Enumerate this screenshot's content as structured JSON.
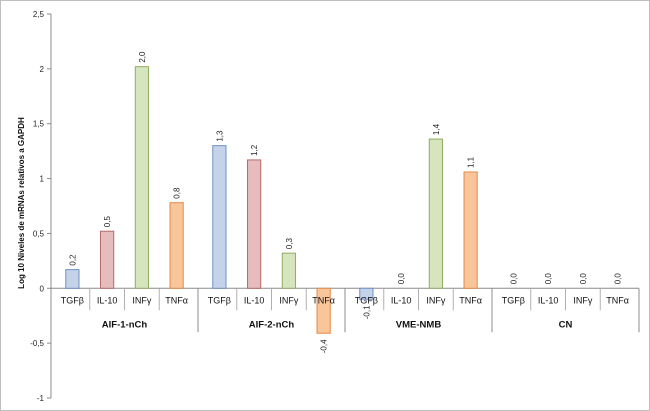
{
  "chart_data": {
    "type": "bar",
    "ylabel": "Log 10 Niveles de mRNAs relativos a GAPDH",
    "ylim": [
      -1,
      2.5
    ],
    "yticks": [
      -1,
      -0.5,
      0,
      0.5,
      1,
      1.5,
      2,
      2.5
    ],
    "ytick_labels": [
      "-1",
      "-0,5",
      "0",
      "0,5",
      "1",
      "1,5",
      "2",
      "2,5"
    ],
    "grid": false,
    "legend": "none",
    "categories": [
      "TGFβ",
      "IL-10",
      "INFγ",
      "TNFα"
    ],
    "colors": {
      "TGFβ": "#c5d3ea",
      "IL-10": "#e6bcbc",
      "INFγ": "#d6e5bd",
      "TNFα": "#f9c59a"
    },
    "border_colors": {
      "TGFβ": "#6f8fc4",
      "IL-10": "#b86a6a",
      "INFγ": "#8fae62",
      "TNFα": "#e58a45"
    },
    "groups": [
      {
        "name": "AIF-1-nCh",
        "values": [
          0.17,
          0.52,
          2.02,
          0.78
        ],
        "labels": [
          "0,2",
          "0,5",
          "2,0",
          "0,8"
        ]
      },
      {
        "name": "AIF-2-nCh",
        "values": [
          1.3,
          1.17,
          0.32,
          -0.41
        ],
        "labels": [
          "1,3",
          "1,2",
          "0,3",
          "-0,4"
        ]
      },
      {
        "name": "VME-NMB",
        "values": [
          -0.1,
          0.0,
          1.36,
          1.06
        ],
        "labels": [
          "-0,1",
          "0,0",
          "1,4",
          "1,1"
        ]
      },
      {
        "name": "CN",
        "values": [
          0.0,
          0.0,
          0.0,
          0.0
        ],
        "labels": [
          "0,0",
          "0,0",
          "0,0",
          "0,0"
        ]
      }
    ]
  }
}
